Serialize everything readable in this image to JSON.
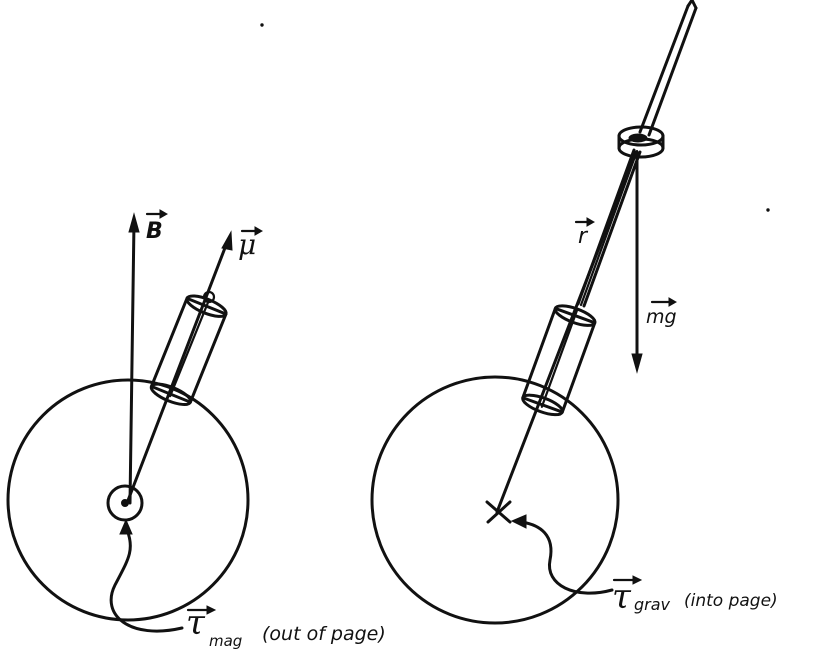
{
  "left_figure": {
    "field_label": "B",
    "moment_label": "μ",
    "torque_label": "τ",
    "torque_subscript": "mag",
    "torque_note": "(out of page)"
  },
  "right_figure": {
    "position_label": "r",
    "weight_label": "mg",
    "torque_label": "τ",
    "torque_subscript": "grav",
    "torque_note": "(into page)"
  }
}
